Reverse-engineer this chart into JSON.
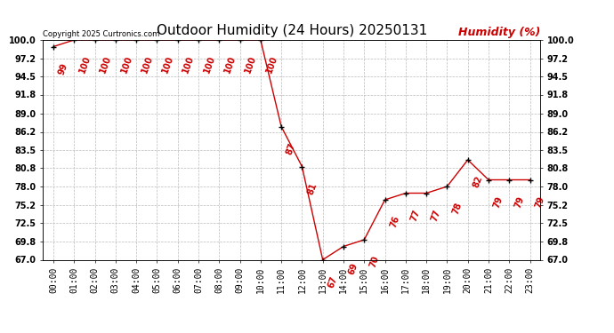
{
  "title": "Outdoor Humidity (24 Hours) 20250131",
  "ylabel_text": "Humidity (%)",
  "copyright": "Copyright 2025 Curtronics.com",
  "hours": [
    0,
    1,
    2,
    3,
    4,
    5,
    6,
    7,
    8,
    9,
    10,
    11,
    12,
    13,
    14,
    15,
    16,
    17,
    18,
    19,
    20,
    21,
    22,
    23
  ],
  "humidity": [
    99,
    100,
    100,
    100,
    100,
    100,
    100,
    100,
    100,
    100,
    100,
    87,
    81,
    67,
    69,
    70,
    76,
    77,
    77,
    78,
    82,
    79,
    79,
    79
  ],
  "xlabels": [
    "00:00",
    "01:00",
    "02:00",
    "03:00",
    "04:00",
    "05:00",
    "06:00",
    "07:00",
    "08:00",
    "09:00",
    "10:00",
    "11:00",
    "12:00",
    "13:00",
    "14:00",
    "15:00",
    "16:00",
    "17:00",
    "18:00",
    "19:00",
    "20:00",
    "21:00",
    "22:00",
    "23:00"
  ],
  "ylim": [
    67.0,
    100.0
  ],
  "yticks": [
    67.0,
    69.8,
    72.5,
    75.2,
    78.0,
    80.8,
    83.5,
    86.2,
    89.0,
    91.8,
    94.5,
    97.2,
    100.0
  ],
  "line_color": "#cc0000",
  "marker_color": "#000000",
  "label_color": "#cc0000",
  "title_color": "#000000",
  "copyright_color": "#000000",
  "ylabel_color": "#cc0000",
  "bg_color": "#ffffff",
  "grid_color": "#bbbbbb",
  "title_fontsize": 11,
  "label_fontsize": 7,
  "axis_fontsize": 7,
  "ylabel_fontsize": 9,
  "copyright_fontsize": 6
}
